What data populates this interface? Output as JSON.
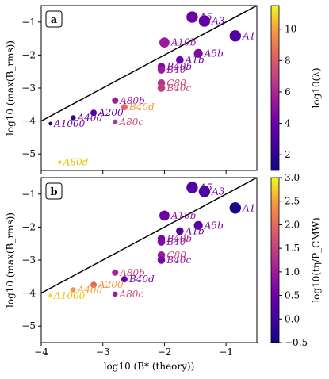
{
  "chart_data": [
    {
      "type": "scatter",
      "panel_label": "a",
      "xlim": [
        -4,
        -0.5
      ],
      "ylim": [
        -5.5,
        -0.5
      ],
      "xticks": [
        -4,
        -3,
        -2,
        -1
      ],
      "xtick_labels": [
        "−4",
        "−3",
        "−2",
        "−1"
      ],
      "yticks": [
        -5,
        -4,
        -3,
        -2,
        -1
      ],
      "ytick_labels": [
        "−5",
        "−4",
        "−3",
        "−2",
        "−1"
      ],
      "ylabel": "log10 (max(B_rms))",
      "reference_line": {
        "x": [
          -4,
          -0.5
        ],
        "y": [
          -4,
          -0.5
        ]
      },
      "colorbar": {
        "label": "log10(λ)",
        "range": [
          1,
          11.5
        ],
        "ticks": [
          2,
          4,
          6,
          8,
          10
        ],
        "tick_labels": [
          "2",
          "4",
          "6",
          "8",
          "10"
        ],
        "colormap": "plasma"
      },
      "points": [
        {
          "label": "A5",
          "x": -1.55,
          "y": -0.85,
          "c": 4.0,
          "size": 9,
          "label_color": "#6a00a8"
        },
        {
          "label": "A3",
          "x": -1.35,
          "y": -0.97,
          "c": 3.5,
          "size": 9,
          "label_color": "#6a00a8"
        },
        {
          "label": "A1",
          "x": -0.85,
          "y": -1.42,
          "c": 3.0,
          "size": 9,
          "label_color": "#6a00a8"
        },
        {
          "label": "A10b",
          "x": -2.0,
          "y": -1.62,
          "c": 5.5,
          "size": 8,
          "label_color": "#9c179e"
        },
        {
          "label": "A5b",
          "x": -1.45,
          "y": -1.95,
          "c": 4.5,
          "size": 7,
          "label_color": "#7e03a8"
        },
        {
          "label": "A1b",
          "x": -1.75,
          "y": -2.15,
          "c": 4.0,
          "size": 6,
          "label_color": "#6a00a8"
        },
        {
          "label": "B40b",
          "x": -2.05,
          "y": -2.35,
          "c": 4.5,
          "size": 6,
          "label_color": "#7e03a8"
        },
        {
          "label": "B40",
          "x": -2.05,
          "y": -2.45,
          "c": 5.5,
          "size": 6,
          "label_color": "#9c179e"
        },
        {
          "label": "C80",
          "x": -2.05,
          "y": -2.85,
          "c": 6.5,
          "size": 6,
          "label_color": "#cc4778"
        },
        {
          "label": "B40c",
          "x": -2.05,
          "y": -3.0,
          "c": 6.8,
          "size": 6,
          "label_color": "#cc4778"
        },
        {
          "label": "A80b",
          "x": -2.8,
          "y": -3.38,
          "c": 5.5,
          "size": 5,
          "label_color": "#9c179e"
        },
        {
          "label": "B40d",
          "x": -2.65,
          "y": -3.58,
          "c": 8.5,
          "size": 5,
          "label_color": "#f89540"
        },
        {
          "label": "A200",
          "x": -3.15,
          "y": -3.75,
          "c": 3.0,
          "size": 5,
          "label_color": "#6a00a8"
        },
        {
          "label": "A80c",
          "x": -2.8,
          "y": -4.03,
          "c": 6.5,
          "size": 4,
          "label_color": "#cc4778"
        },
        {
          "label": "A400",
          "x": -3.48,
          "y": -3.9,
          "c": 2.0,
          "size": 4,
          "label_color": "#6a00a8"
        },
        {
          "label": "A1000",
          "x": -3.85,
          "y": -4.08,
          "c": 1.5,
          "size": 3,
          "label_color": "#6a00a8"
        },
        {
          "label": "A80d",
          "x": -3.7,
          "y": -5.25,
          "c": 11.0,
          "size": 3,
          "label_color": "#e6c200"
        }
      ]
    },
    {
      "type": "scatter",
      "panel_label": "b",
      "xlim": [
        -4,
        -0.5
      ],
      "ylim": [
        -5.5,
        -0.5
      ],
      "xticks": [
        -4,
        -3,
        -2,
        -1
      ],
      "xtick_labels": [
        "−4",
        "−3",
        "−2",
        "−1"
      ],
      "yticks": [
        -5,
        -4,
        -3,
        -2,
        -1
      ],
      "ytick_labels": [
        "−5",
        "−4",
        "−3",
        "−2",
        "−1"
      ],
      "xlabel": "log10 (B* (theory))",
      "ylabel": "log10 (max(B_rms))",
      "reference_line": {
        "x": [
          -4,
          -0.5
        ],
        "y": [
          -4,
          -0.5
        ]
      },
      "colorbar": {
        "label": "log10(tη/P_CMW)",
        "range": [
          -0.5,
          3.0
        ],
        "ticks": [
          -0.5,
          0.0,
          0.5,
          1.0,
          1.5,
          2.0,
          2.5,
          3.0
        ],
        "tick_labels": [
          "−0.5",
          "0.0",
          "0.5",
          "1.0",
          "1.5",
          "2.0",
          "2.5",
          "3.0"
        ],
        "colormap": "plasma"
      },
      "points": [
        {
          "label": "A5",
          "x": -1.55,
          "y": -0.8,
          "c": 0.2,
          "size": 9,
          "label_color": "#6a00a8"
        },
        {
          "label": "A3",
          "x": -1.35,
          "y": -0.92,
          "c": 0.1,
          "size": 9,
          "label_color": "#6a00a8"
        },
        {
          "label": "A1",
          "x": -0.85,
          "y": -1.42,
          "c": -0.4,
          "size": 9,
          "label_color": "#6a00a8"
        },
        {
          "label": "A10b",
          "x": -2.0,
          "y": -1.65,
          "c": 0.5,
          "size": 8,
          "label_color": "#9c179e"
        },
        {
          "label": "A5b",
          "x": -1.45,
          "y": -1.95,
          "c": 0.3,
          "size": 7,
          "label_color": "#7e03a8"
        },
        {
          "label": "A1b",
          "x": -1.75,
          "y": -2.12,
          "c": 0.2,
          "size": 6,
          "label_color": "#6a00a8"
        },
        {
          "label": "B40b",
          "x": -2.05,
          "y": -2.35,
          "c": 0.6,
          "size": 6,
          "label_color": "#9c179e"
        },
        {
          "label": "B40",
          "x": -2.05,
          "y": -2.45,
          "c": 0.7,
          "size": 6,
          "label_color": "#9c179e"
        },
        {
          "label": "C80",
          "x": -2.05,
          "y": -2.85,
          "c": 1.0,
          "size": 6,
          "label_color": "#cc4778"
        },
        {
          "label": "B40c",
          "x": -2.05,
          "y": -3.0,
          "c": 0.6,
          "size": 6,
          "label_color": "#9c179e"
        },
        {
          "label": "A80b",
          "x": -2.8,
          "y": -3.38,
          "c": 1.1,
          "size": 5,
          "label_color": "#cc4778"
        },
        {
          "label": "B40d",
          "x": -2.65,
          "y": -3.58,
          "c": 0.5,
          "size": 5,
          "label_color": "#7e03a8"
        },
        {
          "label": "A200",
          "x": -3.15,
          "y": -3.75,
          "c": 2.0,
          "size": 5,
          "label_color": "#f89540"
        },
        {
          "label": "A80c",
          "x": -2.8,
          "y": -4.03,
          "c": 1.0,
          "size": 4,
          "label_color": "#cc4778"
        },
        {
          "label": "A400",
          "x": -3.48,
          "y": -3.9,
          "c": 2.4,
          "size": 4,
          "label_color": "#f0a030"
        },
        {
          "label": "A1000",
          "x": -3.85,
          "y": -4.08,
          "c": 2.8,
          "size": 3,
          "label_color": "#e6c200"
        }
      ]
    }
  ]
}
